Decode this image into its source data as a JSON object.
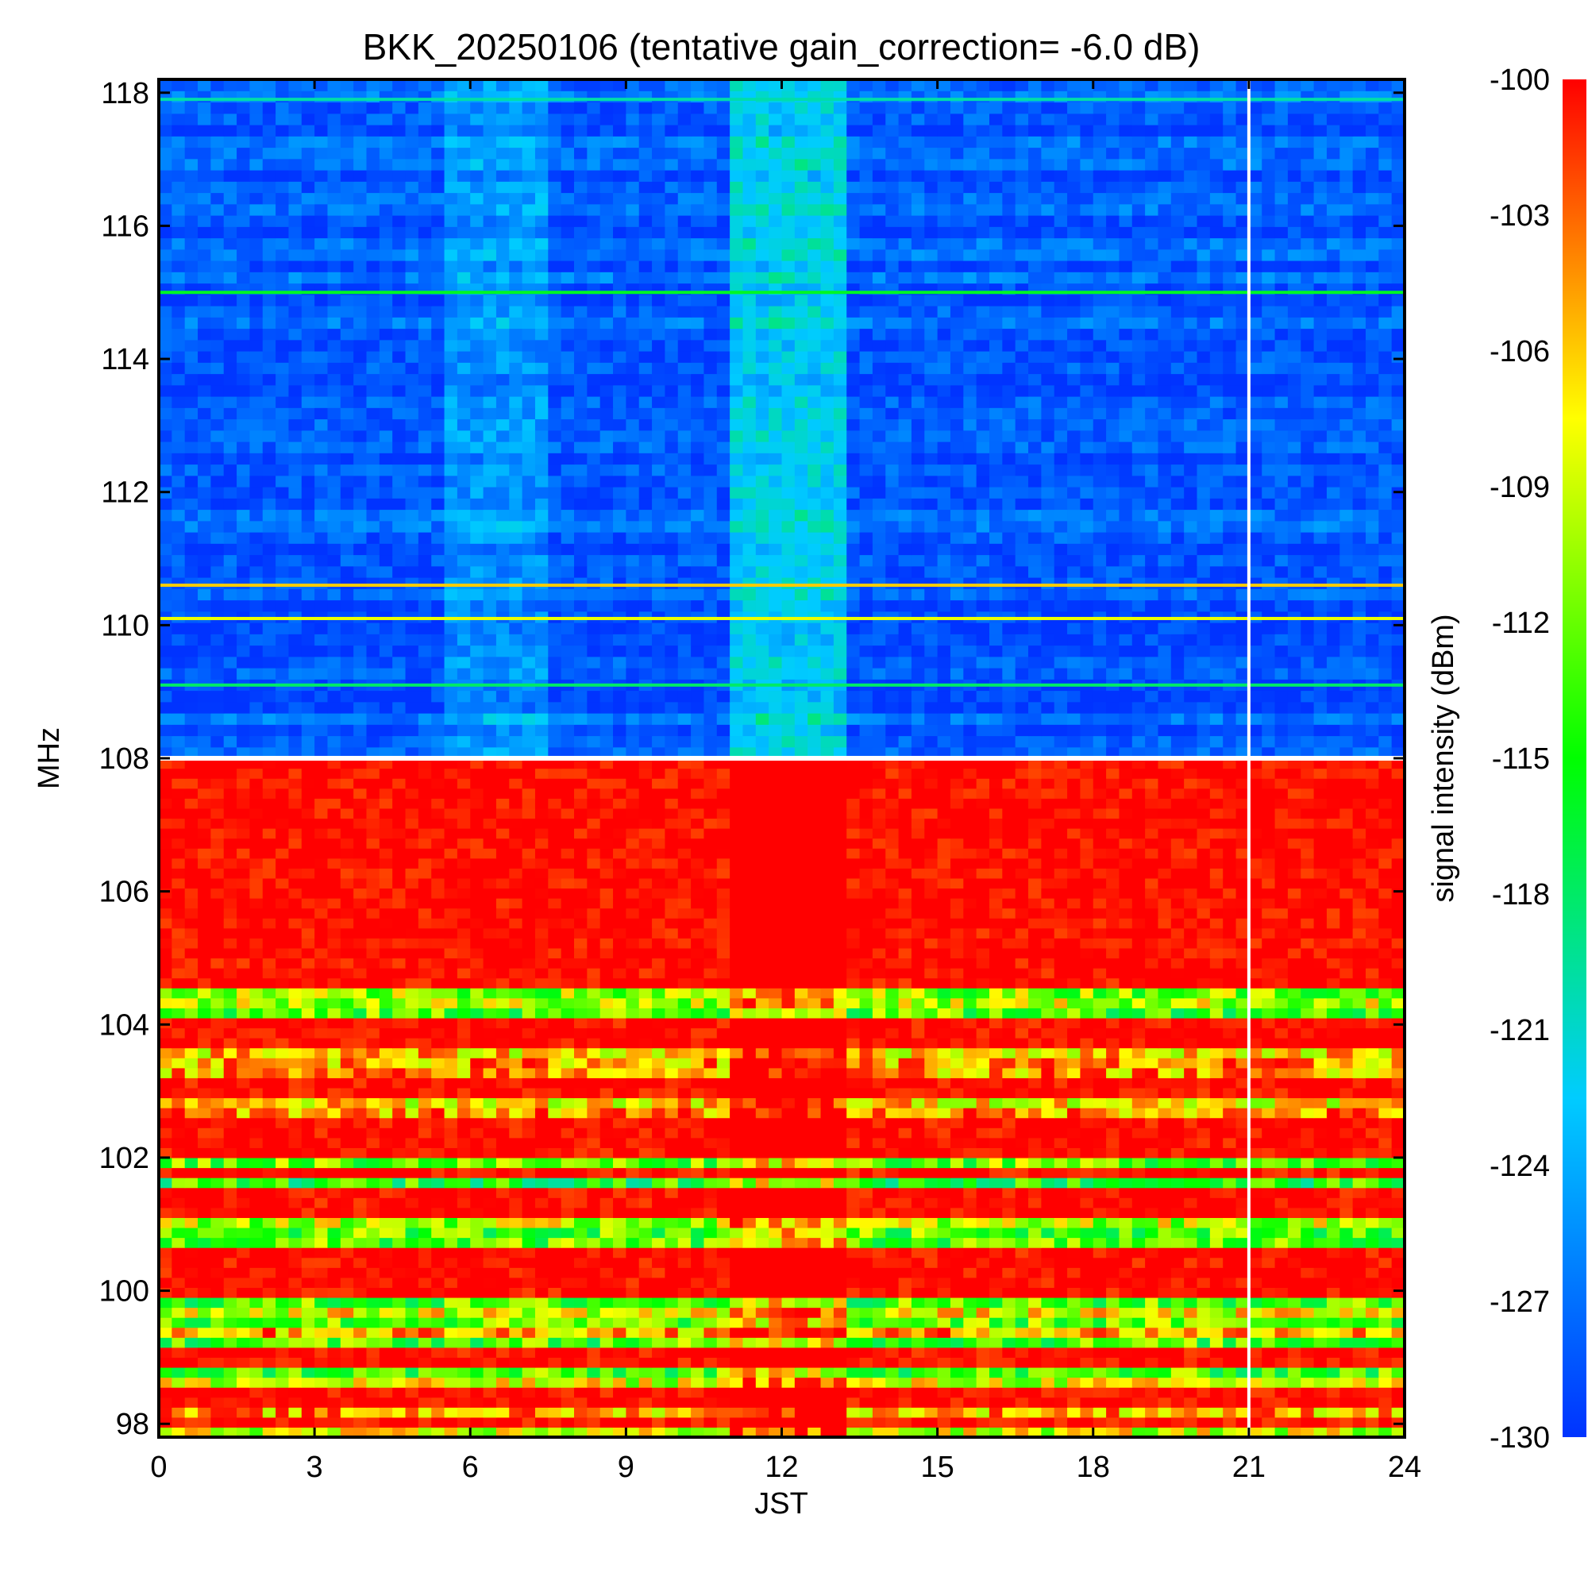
{
  "chart_data": {
    "type": "heatmap",
    "title": "BKK_20250106 (tentative gain_correction= -6.0 dB)",
    "xlabel": "JST",
    "ylabel": "MHz",
    "colorbar_label": "signal intensity (dBm)",
    "xlim": [
      0,
      24
    ],
    "ylim": [
      97.8,
      118.2
    ],
    "x_ticks": [
      0,
      3,
      6,
      9,
      12,
      15,
      18,
      21,
      24
    ],
    "y_ticks": [
      98,
      100,
      102,
      104,
      106,
      108,
      110,
      112,
      114,
      116,
      118
    ],
    "color_range": [
      -130,
      -100
    ],
    "colorbar_ticks": [
      -100,
      -103,
      -106,
      -109,
      -112,
      -115,
      -118,
      -121,
      -124,
      -127,
      -130
    ],
    "colormap": [
      "#0033ff",
      "#00ccff",
      "#00ff00",
      "#ffff00",
      "#ff0000"
    ],
    "data_gap_jst": 21,
    "regions": [
      {
        "band": "108-118 MHz",
        "x_range": [
          0,
          24
        ],
        "typical_dBm": -128
      },
      {
        "band": "108-118 MHz",
        "x_range": [
          5.5,
          7.5
        ],
        "typical_dBm": -125
      },
      {
        "band": "108-118 MHz",
        "x_range": [
          11,
          13.2
        ],
        "typical_dBm": -122
      },
      {
        "band": "98-108 MHz",
        "x_range": [
          0,
          24
        ],
        "typical_dBm": -100
      }
    ],
    "persistent_lines_mhz": [
      {
        "freq": 117.9,
        "dBm": -120
      },
      {
        "freq": 115.0,
        "dBm": -116
      },
      {
        "freq": 110.6,
        "dBm": -106
      },
      {
        "freq": 110.1,
        "dBm": -108
      },
      {
        "freq": 109.1,
        "dBm": -118
      }
    ]
  }
}
